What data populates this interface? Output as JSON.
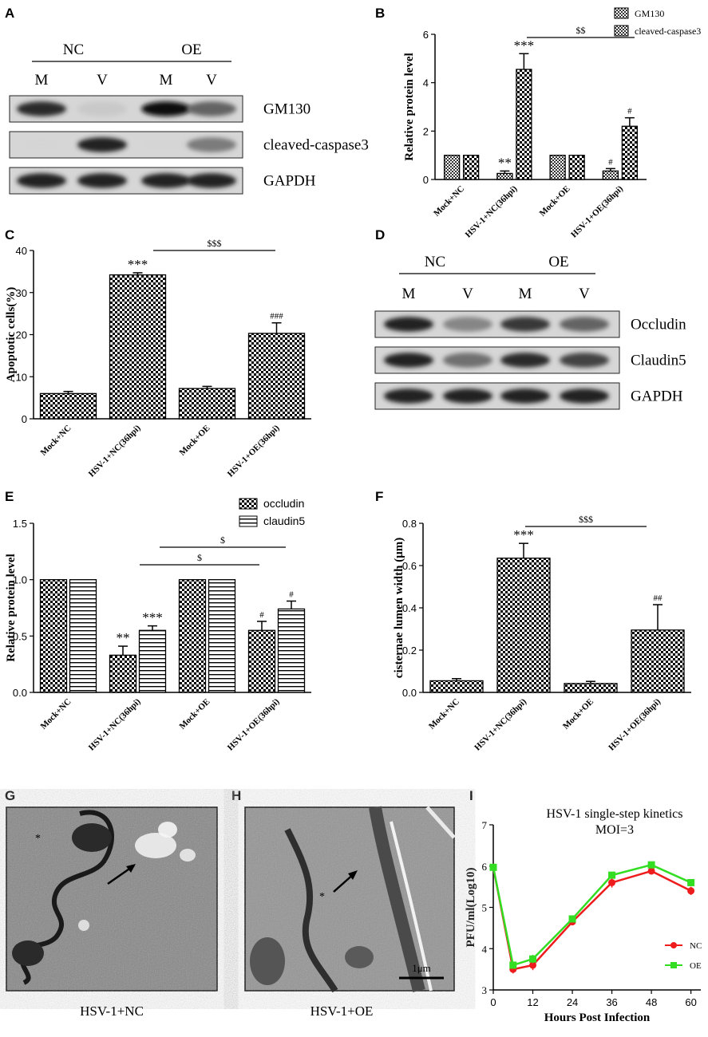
{
  "panels": {
    "A": "A",
    "B": "B",
    "C": "C",
    "D": "D",
    "E": "E",
    "F": "F",
    "G": "G",
    "H": "H",
    "I": "I"
  },
  "blot_A": {
    "groups": [
      "NC",
      "OE"
    ],
    "lanes": [
      "M",
      "V",
      "M",
      "V"
    ],
    "bands": [
      {
        "label": "GM130",
        "intensities": [
          0.85,
          0.15,
          1.0,
          0.6
        ]
      },
      {
        "label": "cleaved-caspase3",
        "intensities": [
          0.1,
          0.9,
          0.1,
          0.5
        ]
      },
      {
        "label": "GAPDH",
        "intensities": [
          0.9,
          0.9,
          0.9,
          0.9
        ]
      }
    ]
  },
  "blot_D": {
    "groups": [
      "NC",
      "OE"
    ],
    "lanes": [
      "M",
      "V",
      "M",
      "V"
    ],
    "bands": [
      {
        "label": "Occludin",
        "intensities": [
          0.9,
          0.45,
          0.8,
          0.6
        ]
      },
      {
        "label": "Claudin5",
        "intensities": [
          0.9,
          0.55,
          0.85,
          0.75
        ]
      },
      {
        "label": "GAPDH",
        "intensities": [
          0.9,
          0.9,
          0.9,
          0.9
        ]
      }
    ]
  },
  "chart_data": [
    {
      "panel": "B",
      "type": "bar",
      "categories": [
        "Mock+NC",
        "HSV-1+NC(36hpi)",
        "Mock+OE",
        "HSV-1+OE(36hpi)"
      ],
      "series": [
        {
          "name": "GM130",
          "values": [
            1.0,
            0.25,
            1.0,
            0.35
          ],
          "errors": [
            0,
            0.1,
            0,
            0.1
          ],
          "marks": [
            "",
            "**",
            "",
            "#"
          ]
        },
        {
          "name": "cleaved-caspase3",
          "values": [
            1.0,
            4.55,
            1.0,
            2.2
          ],
          "errors": [
            0,
            0.65,
            0,
            0.35
          ],
          "marks": [
            "",
            "***",
            "",
            "#"
          ]
        }
      ],
      "ylabel": "Relative protein level",
      "ylim": [
        0,
        6
      ],
      "yticks": [
        0,
        2,
        4,
        6
      ],
      "comparisons": [
        {
          "label": "$$",
          "from": 1,
          "to": 3
        }
      ],
      "legend": "top-right"
    },
    {
      "panel": "C",
      "type": "bar",
      "categories": [
        "Mock+NC",
        "HSV-1+NC(36hpi)",
        "Mock+OE",
        "HSV-1+OE(36hpi)"
      ],
      "series": [
        {
          "values": [
            6.0,
            34.2,
            7.2,
            20.3
          ],
          "errors": [
            0.5,
            0.5,
            0.5,
            2.5
          ],
          "marks": [
            "",
            "***",
            "",
            "###"
          ]
        }
      ],
      "ylabel": "Apoptotic cells(%)",
      "ylim": [
        0,
        40
      ],
      "yticks": [
        0,
        10,
        20,
        30,
        40
      ],
      "comparisons": [
        {
          "label": "$$$",
          "from": 1,
          "to": 3
        }
      ]
    },
    {
      "panel": "E",
      "type": "bar",
      "categories": [
        "Mock+NC",
        "HSV-1+NC(36hpi)",
        "Mock+OE",
        "HSV-1+OE(36hpi)"
      ],
      "series": [
        {
          "name": "occludin",
          "values": [
            1.0,
            0.33,
            1.0,
            0.55
          ],
          "errors": [
            0,
            0.08,
            0,
            0.08
          ],
          "marks": [
            "",
            "**",
            "",
            "#"
          ]
        },
        {
          "name": "claudin5",
          "values": [
            1.0,
            0.55,
            1.0,
            0.74
          ],
          "errors": [
            0,
            0.04,
            0,
            0.07
          ],
          "marks": [
            "",
            "***",
            "",
            "#"
          ]
        }
      ],
      "ylabel": "Relative protein level",
      "ylim": [
        0,
        1.5
      ],
      "yticks": [
        "0.0",
        "0.5",
        "1.0",
        "1.5"
      ],
      "comparisons": [
        {
          "label": "$",
          "from": 1,
          "to": 3,
          "series": 0
        },
        {
          "label": "$",
          "from": 1,
          "to": 3,
          "series": 1
        }
      ],
      "legend": "top-right"
    },
    {
      "panel": "F",
      "type": "bar",
      "categories": [
        "Mock+NC",
        "HSV-1+NC(36hpi)",
        "Mock+OE",
        "HSV-1+OE(36hpi)"
      ],
      "series": [
        {
          "values": [
            0.055,
            0.635,
            0.042,
            0.295
          ],
          "errors": [
            0.01,
            0.07,
            0.01,
            0.12
          ],
          "marks": [
            "",
            "***",
            "",
            "##"
          ]
        }
      ],
      "ylabel": "cisternae lumen width (μm)",
      "ylim": [
        0,
        0.8
      ],
      "yticks": [
        "0.0",
        "0.2",
        "0.4",
        "0.6",
        "0.8"
      ],
      "comparisons": [
        {
          "label": "$$$",
          "from": 1,
          "to": 3
        }
      ]
    },
    {
      "panel": "I",
      "type": "line",
      "title": "HSV-1 single-step kinetics",
      "subtitle": "MOI=3",
      "xlabel": "Hours Post Infection",
      "ylabel": "PFU/ml(Log10)",
      "x": [
        0,
        6,
        12,
        24,
        36,
        48,
        60
      ],
      "xticks": [
        0,
        12,
        24,
        36,
        48,
        60
      ],
      "xlim": [
        0,
        63
      ],
      "ylim": [
        3,
        7
      ],
      "yticks": [
        3,
        4,
        5,
        6,
        7
      ],
      "series": [
        {
          "name": "NC",
          "color": "#ee1c1c",
          "values": [
            5.97,
            3.5,
            3.6,
            4.65,
            5.6,
            5.88,
            5.4
          ],
          "errors": [
            0.05,
            0.1,
            0.12,
            0.08,
            0.12,
            0.08,
            0.1
          ]
        },
        {
          "name": "OE",
          "color": "#33dd22",
          "values": [
            5.97,
            3.6,
            3.75,
            4.72,
            5.78,
            6.03,
            5.6
          ],
          "errors": [
            0.05,
            0.08,
            0.1,
            0.06,
            0.08,
            0.08,
            0.08
          ]
        }
      ],
      "legend": "bottom-right"
    }
  ],
  "micrographs": {
    "G": {
      "caption": "HSV-1+NC",
      "marker": "*"
    },
    "H": {
      "caption": "HSV-1+OE",
      "marker": "*",
      "scalebar": "1μm"
    }
  },
  "colors": {
    "background": "#ffffff",
    "ink": "#000000",
    "nc": "#ee1c1c",
    "oe": "#33dd22",
    "blot_bg": "#d2d2d2",
    "micro_bg": "#8c8c8c"
  }
}
